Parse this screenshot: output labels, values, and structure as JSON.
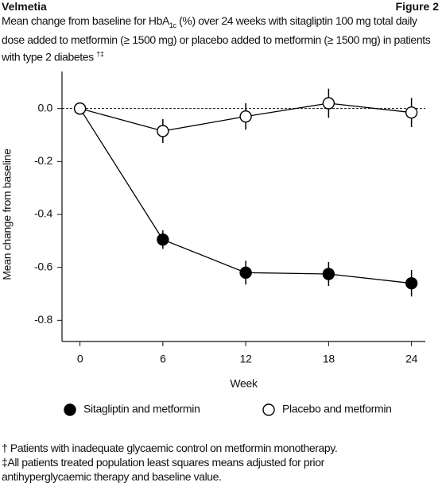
{
  "header": {
    "brand": "Velmetia",
    "figure": "Figure 2"
  },
  "chart_data": {
    "type": "line",
    "title_parts": [
      "Mean change from baseline for HbA",
      "1c",
      " (%) over 24 weeks with sitagliptin 100 mg total daily dose added to metformin (≥ 1500 mg) or placebo added to metformin (≥ 1500 mg) in patients with type 2 diabetes ",
      "†‡"
    ],
    "x_label": "Week",
    "y_label": "Mean change from baseline",
    "x": [
      0,
      6,
      12,
      18,
      24
    ],
    "xlim": [
      -1.3,
      25
    ],
    "xticks": [
      0,
      6,
      12,
      18,
      24
    ],
    "ylim": [
      -0.88,
      0.14
    ],
    "yticks": [
      {
        "value": 0,
        "label": "0.0"
      },
      -0.2,
      -0.4,
      -0.6,
      -0.8
    ],
    "reference_line": 0,
    "series": [
      {
        "name": "Sitagliptin and metformin",
        "color": "#000000",
        "marker_fill": "#000000",
        "values": [
          0,
          -0.495,
          -0.62,
          -0.625,
          -0.66
        ],
        "errors": [
          null,
          0.035,
          0.045,
          0.045,
          0.05
        ]
      },
      {
        "name": "Placebo and metformin",
        "color": "#000000",
        "marker_fill": "#ffffff",
        "values": [
          0,
          -0.085,
          -0.03,
          0.02,
          -0.015
        ],
        "errors": [
          null,
          0.045,
          0.05,
          0.055,
          0.055
        ]
      }
    ],
    "footnotes": [
      "† Patients with inadequate glycaemic control on metformin monotherapy.",
      "‡All patients treated population least squares means adjusted for prior antihyperglycaemic therapy and baseline value."
    ]
  }
}
